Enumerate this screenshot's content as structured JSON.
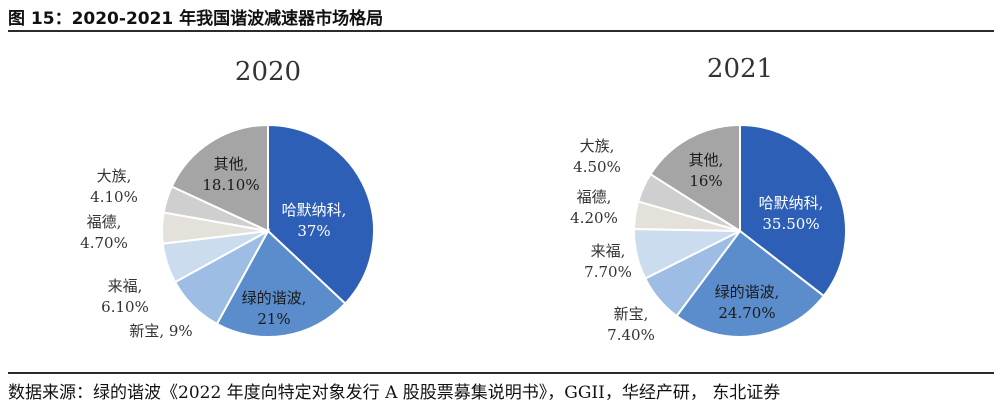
{
  "figure": {
    "title": "图 15：2020-2021 年我国谐波减速器市场格局",
    "source": "数据来源：绿的谐波《2022 年度向特定对象发行 A 股股票募集说明书》，GGII，华经产研， 东北证券"
  },
  "colors": {
    "哈默纳科": "#2e5fb6",
    "绿的谐波": "#5b8ccb",
    "新宝": "#9dbde4",
    "来福": "#ccdcef",
    "福德": "#e4e1da",
    "大族": "#cfcfcf",
    "其他": "#a5a5a5"
  },
  "chart_data": [
    {
      "type": "pie",
      "title": "2020",
      "slices": [
        {
          "label": "哈默纳科,",
          "value": 37,
          "value_text": "37%"
        },
        {
          "label": "绿的谐波,",
          "value": 21,
          "value_text": "21%"
        },
        {
          "label": "新宝,",
          "value": 9,
          "value_text": "9%"
        },
        {
          "label": "来福,",
          "value": 6.1,
          "value_text": "6.10%"
        },
        {
          "label": "福德,",
          "value": 4.7,
          "value_text": "4.70%"
        },
        {
          "label": "大族,",
          "value": 4.1,
          "value_text": "4.10%"
        },
        {
          "label": "其他,",
          "value": 18.1,
          "value_text": "18.10%"
        }
      ]
    },
    {
      "type": "pie",
      "title": "2021",
      "slices": [
        {
          "label": "哈默纳科,",
          "value": 35.5,
          "value_text": "35.50%"
        },
        {
          "label": "绿的谐波,",
          "value": 24.7,
          "value_text": "24.70%"
        },
        {
          "label": "新宝,",
          "value": 7.4,
          "value_text": "7.40%"
        },
        {
          "label": "来福,",
          "value": 7.7,
          "value_text": "7.70%"
        },
        {
          "label": "福德,",
          "value": 4.2,
          "value_text": "4.20%"
        },
        {
          "label": "大族,",
          "value": 4.5,
          "value_text": "4.50%"
        },
        {
          "label": "其他,",
          "value": 16,
          "value_text": "16%"
        }
      ]
    }
  ]
}
